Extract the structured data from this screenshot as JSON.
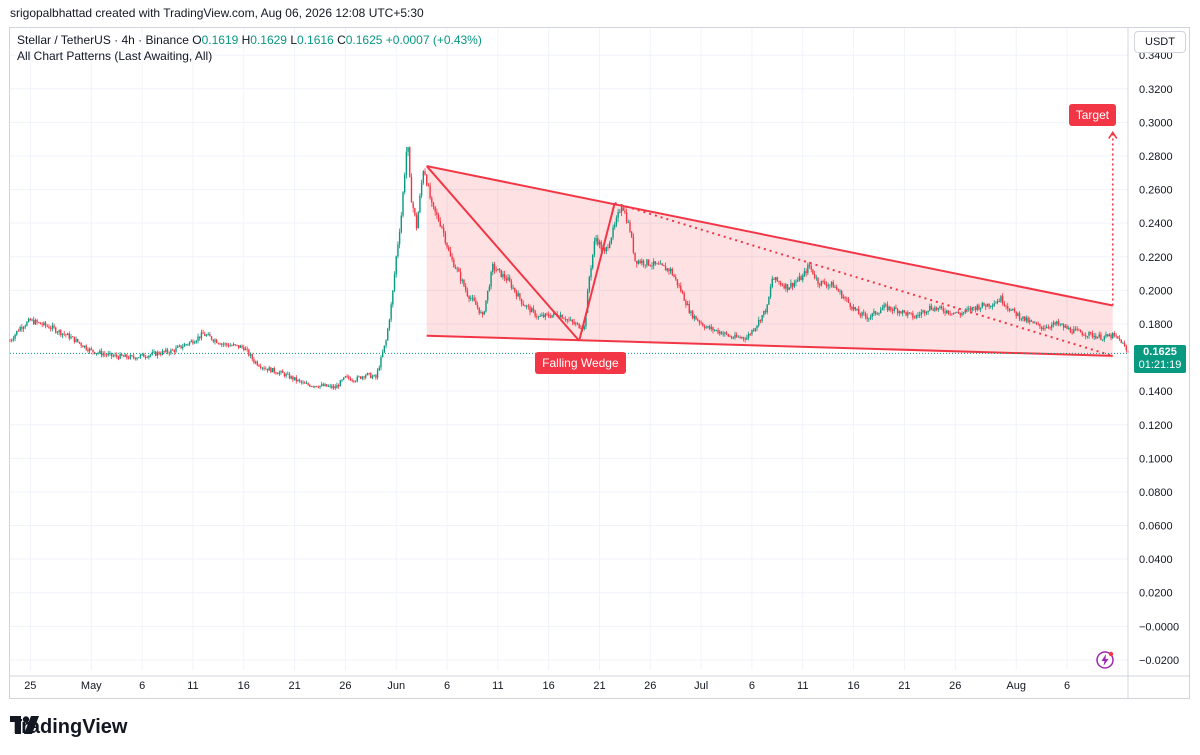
{
  "header": {
    "credit": "srigopalbhattad created with TradingView.com, Aug 06, 2026 12:08 UTC+5:30"
  },
  "legend": {
    "symbol": "Stellar / TetherUS · 4h · Binance",
    "o_label": "O",
    "o": "0.1619",
    "h_label": "H",
    "h": "0.1629",
    "l_label": "L",
    "l": "0.1616",
    "c_label": "C",
    "c": "0.1625",
    "change": "+0.0007 (+0.43%)",
    "indicator": "All Chart Patterns (Last Awaiting, All)"
  },
  "unit_button": "USDT",
  "last_price": {
    "price": "0.1625",
    "countdown": "01:21:19"
  },
  "pattern": {
    "name": "Falling Wedge",
    "target_label": "Target"
  },
  "brand": {
    "name": "TradingView"
  },
  "icons": {
    "logo": "tradingview-logo-icon",
    "alert": "lightning-bolt-icon"
  },
  "colors": {
    "up": "#089981",
    "down": "#f23645",
    "pattern": "#f23645",
    "pattern_fill": "#f23645"
  },
  "chart_data": {
    "type": "candlestick",
    "timeframe": "4h",
    "x_ticks": [
      "25",
      "May",
      "6",
      "11",
      "16",
      "21",
      "26",
      "Jun",
      "6",
      "11",
      "16",
      "21",
      "26",
      "Jul",
      "6",
      "11",
      "16",
      "21",
      "26",
      "Aug",
      "6"
    ],
    "y_ticks": [
      "0.3400",
      "0.3200",
      "0.3000",
      "0.2800",
      "0.2600",
      "0.2400",
      "0.2200",
      "0.2000",
      "0.1800",
      "0.1600",
      "0.1400",
      "0.1200",
      "0.1000",
      "0.0800",
      "0.0600",
      "0.0400",
      "0.0200",
      "−0.0000",
      "−0.0200"
    ],
    "ylim": [
      -0.026,
      0.3562
    ],
    "x_range_days": [
      -8,
      102
    ],
    "x_tick_days": [
      -6,
      0,
      5,
      10,
      15,
      20,
      25,
      30,
      35,
      40,
      45,
      50,
      55,
      60,
      65,
      70,
      75,
      80,
      85,
      91,
      96
    ],
    "price_path": [
      [
        -8,
        0.17
      ],
      [
        -7,
        0.178
      ],
      [
        -6,
        0.182
      ],
      [
        -4,
        0.178
      ],
      [
        -2,
        0.172
      ],
      [
        0,
        0.164
      ],
      [
        2,
        0.161
      ],
      [
        4,
        0.16
      ],
      [
        6,
        0.162
      ],
      [
        8,
        0.164
      ],
      [
        10,
        0.17
      ],
      [
        11,
        0.174
      ],
      [
        13,
        0.168
      ],
      [
        15,
        0.166
      ],
      [
        16,
        0.158
      ],
      [
        17,
        0.154
      ],
      [
        19,
        0.15
      ],
      [
        21,
        0.144
      ],
      [
        23,
        0.143
      ],
      [
        24,
        0.142
      ],
      [
        25,
        0.148
      ],
      [
        26,
        0.147
      ],
      [
        27,
        0.15
      ],
      [
        28,
        0.148
      ],
      [
        29,
        0.17
      ],
      [
        29.6,
        0.195
      ],
      [
        30,
        0.22
      ],
      [
        30.5,
        0.245
      ],
      [
        30.8,
        0.268
      ],
      [
        31.1,
        0.29
      ],
      [
        31.4,
        0.258
      ],
      [
        32,
        0.238
      ],
      [
        32.7,
        0.274
      ],
      [
        33.5,
        0.25
      ],
      [
        34.5,
        0.238
      ],
      [
        35.3,
        0.22
      ],
      [
        36,
        0.212
      ],
      [
        37,
        0.198
      ],
      [
        38,
        0.19
      ],
      [
        38.5,
        0.184
      ],
      [
        39.5,
        0.214
      ],
      [
        41,
        0.206
      ],
      [
        42.5,
        0.192
      ],
      [
        44,
        0.184
      ],
      [
        46,
        0.186
      ],
      [
        47.5,
        0.18
      ],
      [
        48.5,
        0.178
      ],
      [
        49,
        0.208
      ],
      [
        49.6,
        0.232
      ],
      [
        50.5,
        0.222
      ],
      [
        51.5,
        0.238
      ],
      [
        52.2,
        0.252
      ],
      [
        53,
        0.236
      ],
      [
        53.5,
        0.218
      ],
      [
        55,
        0.216
      ],
      [
        57,
        0.212
      ],
      [
        58,
        0.2
      ],
      [
        59,
        0.186
      ],
      [
        60.5,
        0.178
      ],
      [
        62,
        0.175
      ],
      [
        63,
        0.172
      ],
      [
        64.5,
        0.172
      ],
      [
        65.5,
        0.18
      ],
      [
        66.5,
        0.19
      ],
      [
        67,
        0.207
      ],
      [
        68.5,
        0.202
      ],
      [
        70,
        0.208
      ],
      [
        70.6,
        0.215
      ],
      [
        71.5,
        0.205
      ],
      [
        73,
        0.203
      ],
      [
        74,
        0.196
      ],
      [
        75.5,
        0.186
      ],
      [
        76.5,
        0.184
      ],
      [
        78,
        0.19
      ],
      [
        79.5,
        0.188
      ],
      [
        81,
        0.184
      ],
      [
        82.5,
        0.19
      ],
      [
        84,
        0.188
      ],
      [
        85.5,
        0.186
      ],
      [
        87,
        0.19
      ],
      [
        88.5,
        0.192
      ],
      [
        89.5,
        0.195
      ],
      [
        90.5,
        0.188
      ],
      [
        92,
        0.182
      ],
      [
        93.5,
        0.178
      ],
      [
        95,
        0.18
      ],
      [
        96.5,
        0.176
      ],
      [
        98,
        0.174
      ],
      [
        99.5,
        0.172
      ],
      [
        100.5,
        0.173
      ],
      [
        101.3,
        0.17
      ],
      [
        102,
        0.1625
      ]
    ],
    "pattern_lines": {
      "upper": [
        [
          33,
          0.274
        ],
        [
          100.5,
          0.191
        ]
      ],
      "lower": [
        [
          33,
          0.173
        ],
        [
          100.5,
          0.161
        ]
      ],
      "zigzag": [
        [
          33,
          0.274
        ],
        [
          48,
          0.17
        ],
        [
          51.5,
          0.252
        ]
      ],
      "target_from": [
        100.5,
        0.191
      ],
      "target_to": [
        100.5,
        0.294
      ]
    }
  }
}
